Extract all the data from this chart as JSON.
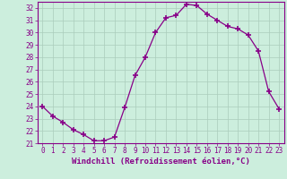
{
  "hours": [
    0,
    1,
    2,
    3,
    4,
    5,
    6,
    7,
    8,
    9,
    10,
    11,
    12,
    13,
    14,
    15,
    16,
    17,
    18,
    19,
    20,
    21,
    22,
    23
  ],
  "values": [
    24.0,
    23.2,
    22.7,
    22.1,
    21.7,
    21.2,
    21.2,
    21.5,
    23.9,
    26.5,
    28.0,
    30.0,
    31.2,
    31.4,
    32.3,
    32.2,
    31.5,
    31.0,
    30.5,
    30.3,
    29.8,
    28.5,
    25.2,
    23.8
  ],
  "line_color": "#880088",
  "marker": "+",
  "marker_size": 4,
  "marker_linewidth": 1.2,
  "bg_color": "#cceedd",
  "grid_color": "#aaccbb",
  "xlabel": "Windchill (Refroidissement éolien,°C)",
  "xlabel_color": "#880088",
  "ylim": [
    21,
    32.5
  ],
  "xlim": [
    -0.5,
    23.5
  ],
  "yticks": [
    21,
    22,
    23,
    24,
    25,
    26,
    27,
    28,
    29,
    30,
    31,
    32
  ],
  "xticks": [
    0,
    1,
    2,
    3,
    4,
    5,
    6,
    7,
    8,
    9,
    10,
    11,
    12,
    13,
    14,
    15,
    16,
    17,
    18,
    19,
    20,
    21,
    22,
    23
  ],
  "tick_color": "#880088",
  "tick_label_size": 5.5,
  "xlabel_size": 6.5,
  "line_width": 0.9
}
